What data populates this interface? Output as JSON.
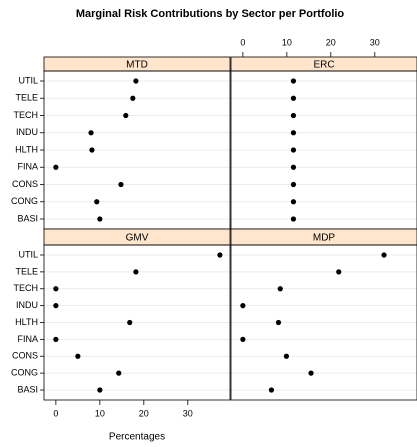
{
  "chart_data": {
    "type": "dotplot",
    "title": "Marginal Risk Contributions by Sector per Portfolio",
    "x_label": "Percentages",
    "categories": [
      "BASI",
      "CONG",
      "CONS",
      "FINA",
      "HLTH",
      "INDU",
      "TECH",
      "TELE",
      "UTIL"
    ],
    "panels": [
      {
        "name": "MTD",
        "values": [
          10.0,
          9.3,
          14.8,
          0,
          8.2,
          8.0,
          15.9,
          17.5,
          18.2
        ]
      },
      {
        "name": "ERC",
        "values": [
          11.5,
          11.5,
          11.5,
          11.5,
          11.5,
          11.5,
          11.5,
          11.5,
          11.5
        ]
      },
      {
        "name": "GMV",
        "values": [
          10.0,
          14.3,
          5.0,
          0,
          16.8,
          0,
          0,
          18.2,
          37.3
        ]
      },
      {
        "name": "MDP",
        "values": [
          6.5,
          15.5,
          9.9,
          0,
          8.1,
          0,
          8.5,
          21.8,
          32.1
        ]
      }
    ],
    "xlim": [
      -2.7,
      39.6
    ],
    "xticks": [
      0,
      10,
      20,
      30
    ],
    "strip_color": "#ffe5cc",
    "point_color": "#000000",
    "grid": true
  }
}
